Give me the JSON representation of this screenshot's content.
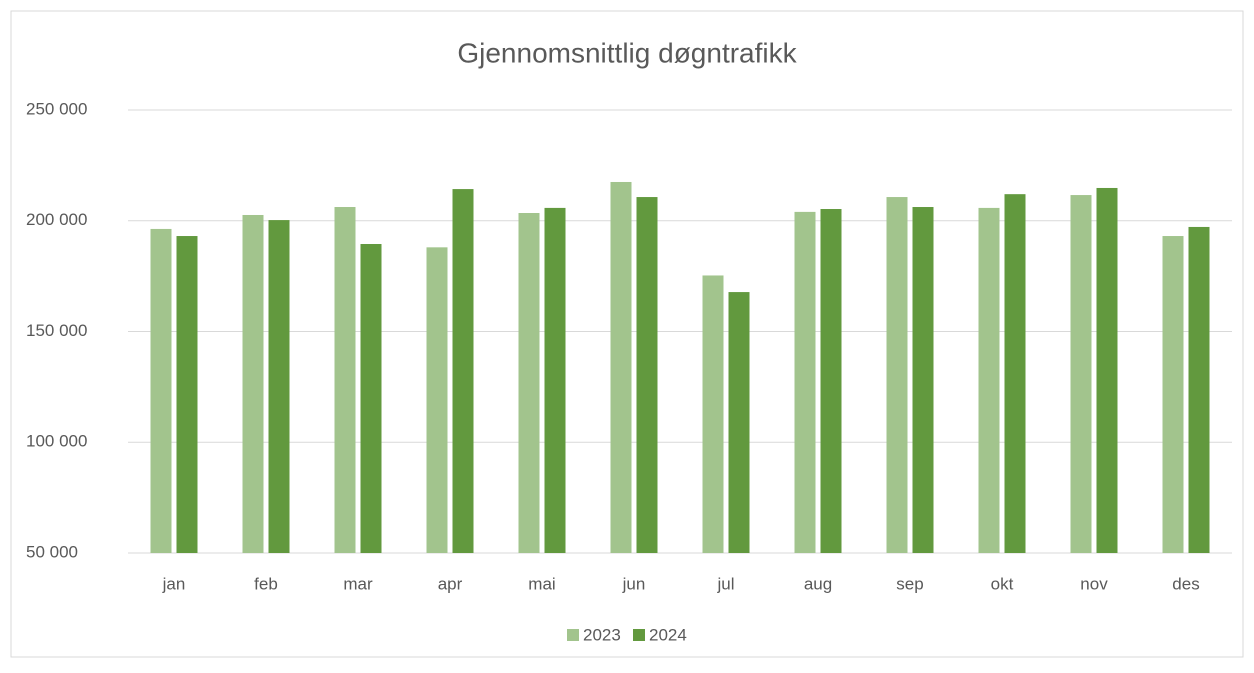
{
  "chart_data": {
    "type": "bar",
    "title": "Gjennomsnittlig døgntrafikk",
    "categories": [
      "jan",
      "feb",
      "mar",
      "apr",
      "mai",
      "jun",
      "jul",
      "aug",
      "sep",
      "okt",
      "nov",
      "des"
    ],
    "series": [
      {
        "name": "2023",
        "color": "#a2c48d",
        "values": [
          196300,
          202600,
          206200,
          188000,
          203500,
          217500,
          175300,
          204000,
          210700,
          205800,
          211600,
          193100
        ]
      },
      {
        "name": "2024",
        "color": "#62993e",
        "values": [
          193100,
          200300,
          189500,
          214300,
          205800,
          210700,
          167800,
          205300,
          206200,
          212000,
          214800,
          197200
        ]
      }
    ],
    "ylim": [
      50000,
      250000
    ],
    "yticks": [
      {
        "value": 50000,
        "label": "50 000"
      },
      {
        "value": 100000,
        "label": "100 000"
      },
      {
        "value": 150000,
        "label": "150 000"
      },
      {
        "value": 200000,
        "label": "200 000"
      },
      {
        "value": 250000,
        "label": "250 000"
      }
    ],
    "grid": true,
    "legend": "bottom"
  }
}
